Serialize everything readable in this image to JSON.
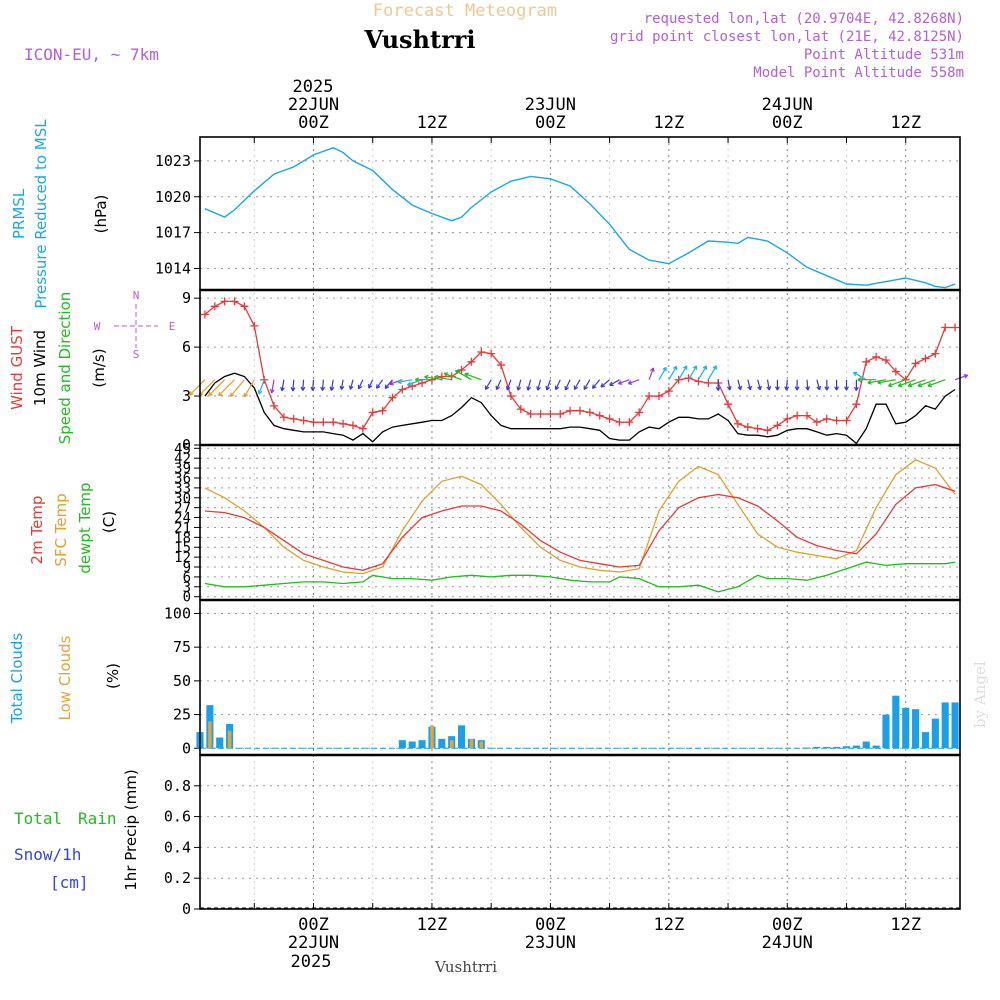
{
  "header": {
    "title": "Forecast Meteogram",
    "location": "Vushtrri",
    "model": "ICON-EU, ~ 7km",
    "requested": "requested lon,lat (20.9704E, 42.8268N)",
    "gridpoint": "grid point closest lon,lat (21E, 42.8125N)",
    "point_alt": "Point Altitude 531m",
    "model_alt": "Model Point Altitude 558m",
    "watermark": "by Angel",
    "footer_location": "Vushtrri"
  },
  "time_axis": {
    "top_year": "2025",
    "top_ticks": [
      {
        "t": 0,
        "time": "00Z",
        "date": "22JUN"
      },
      {
        "t": 12,
        "time": "12Z",
        "date": ""
      },
      {
        "t": 24,
        "time": "00Z",
        "date": "23JUN"
      },
      {
        "t": 36,
        "time": "12Z",
        "date": ""
      },
      {
        "t": 48,
        "time": "00Z",
        "date": "24JUN"
      },
      {
        "t": 60,
        "time": "12Z",
        "date": ""
      }
    ],
    "bottom_year": "2025",
    "bottom_ticks": [
      {
        "t": 0,
        "time": "00Z",
        "date": "22JUN"
      },
      {
        "t": 12,
        "time": "12Z",
        "date": ""
      },
      {
        "t": 24,
        "time": "00Z",
        "date": "23JUN"
      },
      {
        "t": 36,
        "time": "12Z",
        "date": ""
      },
      {
        "t": 48,
        "time": "00Z",
        "date": "24JUN"
      },
      {
        "t": 60,
        "time": "12Z",
        "date": ""
      }
    ],
    "range_hours": [
      -11.5,
      65.5
    ]
  },
  "colors": {
    "pressure": "#1aa7e6",
    "gust": "#e83a3a",
    "wind": "#000000",
    "temp2m": "#e83a3a",
    "sfctemp": "#e0a030",
    "dewpt": "#22bb22",
    "total_cloud": "#1a9fe8",
    "low_cloud": "#dfa63a",
    "rain": "#22bb22",
    "snow": "#3344dd",
    "purple": "#b060d8",
    "title": "#f0c890"
  },
  "panels": {
    "pressure": {
      "label1": "PRMSL",
      "label2": "Pressure Reduced to MSL",
      "unit": "(hPa)",
      "ticks": [
        "1014",
        "1017",
        "1020",
        "1023"
      ]
    },
    "wind": {
      "gust_label": "Wind GUST",
      "wind_label": "10m Wind",
      "dir_label": "Speed and Direction",
      "unit": "(m/s)",
      "ticks": [
        "0",
        "3",
        "6",
        "9"
      ],
      "compass_w": "W",
      "compass_e": "E",
      "compass_n": "N",
      "compass_s": "S"
    },
    "temp": {
      "label1": "2m Temp",
      "label2": "SFC Temp",
      "label3": "dewpt Temp",
      "unit": "(C)",
      "ticks": [
        "0",
        "3",
        "6",
        "9",
        "12",
        "15",
        "18",
        "21",
        "24",
        "27",
        "30",
        "33",
        "36",
        "39",
        "42",
        "45"
      ]
    },
    "clouds": {
      "label1": "Total Clouds",
      "label2": "Low Clouds",
      "unit": "(%)",
      "ticks": [
        "0",
        "25",
        "50",
        "75",
        "100"
      ]
    },
    "precip": {
      "rain_label1": "Total",
      "rain_label2": "Rain",
      "snow_label1": "Snow/1h",
      "snow_label2": "[cm]",
      "unit": "1hr Precip (mm)",
      "ticks": [
        "0",
        "0.2",
        "0.4",
        "0.6",
        "0.8"
      ]
    }
  },
  "chart_data": {
    "type": "line",
    "x_unit": "hours from 22JUN 00Z",
    "pressure": {
      "name": "PRMSL (hPa)",
      "ylim": [
        1012.2,
        1025
      ],
      "x": [
        -11,
        -9,
        -8,
        -6,
        -4,
        -2,
        0,
        2,
        3,
        4,
        6,
        8,
        10,
        12,
        14,
        15,
        16,
        18,
        20,
        22,
        24,
        26,
        28,
        30,
        32,
        34,
        36,
        38,
        40,
        42,
        43,
        44,
        46,
        48,
        50,
        52,
        54,
        56,
        58,
        60,
        62,
        63,
        64,
        65
      ],
      "y": [
        1019.0,
        1018.3,
        1018.9,
        1020.5,
        1021.9,
        1022.5,
        1023.5,
        1024.1,
        1023.7,
        1023.0,
        1022.2,
        1020.6,
        1019.3,
        1018.6,
        1018.0,
        1018.3,
        1019.1,
        1020.4,
        1021.3,
        1021.7,
        1021.5,
        1020.9,
        1019.4,
        1017.7,
        1015.6,
        1014.7,
        1014.4,
        1015.3,
        1016.3,
        1016.2,
        1016.1,
        1016.6,
        1016.3,
        1015.3,
        1014.1,
        1013.4,
        1012.7,
        1012.6,
        1012.9,
        1013.2,
        1012.8,
        1012.5,
        1012.4,
        1012.7
      ]
    },
    "wind_gust": {
      "name": "Wind GUST (m/s)",
      "ylim": [
        0,
        9.5
      ],
      "x": [
        -11,
        -10,
        -9,
        -8,
        -7,
        -6,
        -5,
        -4,
        -3,
        -2,
        -1,
        0,
        1,
        2,
        3,
        4,
        5,
        6,
        7,
        8,
        9,
        10,
        11,
        12,
        13,
        14,
        15,
        16,
        17,
        18,
        19,
        20,
        21,
        22,
        23,
        24,
        25,
        26,
        27,
        28,
        29,
        30,
        31,
        32,
        33,
        34,
        35,
        36,
        37,
        38,
        39,
        40,
        41,
        42,
        43,
        44,
        45,
        46,
        47,
        48,
        49,
        50,
        51,
        52,
        53,
        54,
        55,
        56,
        57,
        58,
        59,
        60,
        61,
        62,
        63,
        64,
        65
      ],
      "y": [
        8.0,
        8.5,
        8.8,
        8.8,
        8.5,
        7.3,
        4.0,
        2.4,
        1.7,
        1.6,
        1.5,
        1.4,
        1.4,
        1.4,
        1.3,
        1.2,
        1.0,
        2.0,
        2.1,
        2.9,
        3.4,
        3.6,
        3.8,
        4.0,
        4.2,
        4.2,
        4.6,
        5.1,
        5.7,
        5.6,
        4.9,
        3.0,
        2.2,
        1.9,
        1.9,
        1.9,
        1.9,
        2.1,
        2.1,
        2.0,
        1.8,
        1.6,
        1.4,
        1.4,
        2.0,
        3.0,
        3.0,
        3.3,
        4.0,
        4.1,
        3.9,
        3.8,
        3.8,
        2.5,
        1.3,
        1.1,
        1.0,
        0.9,
        1.2,
        1.6,
        1.8,
        1.8,
        1.4,
        1.6,
        1.5,
        1.5,
        2.5,
        5.1,
        5.4,
        5.2,
        4.5,
        4.0,
        5.0,
        5.3,
        5.6,
        7.2,
        7.2
      ]
    },
    "wind_10m": {
      "name": "10m Wind (m/s)",
      "ylim": [
        0,
        9.5
      ],
      "x": [
        -11,
        -10,
        -9,
        -8,
        -7,
        -6,
        -5,
        -4,
        -3,
        -2,
        -1,
        0,
        1,
        2,
        3,
        4,
        5,
        6,
        7,
        8,
        9,
        10,
        11,
        12,
        13,
        14,
        15,
        16,
        17,
        18,
        19,
        20,
        21,
        22,
        23,
        24,
        25,
        26,
        27,
        28,
        29,
        30,
        31,
        32,
        33,
        34,
        35,
        36,
        37,
        38,
        39,
        40,
        41,
        42,
        43,
        44,
        45,
        46,
        47,
        48,
        49,
        50,
        51,
        52,
        53,
        54,
        55,
        56,
        57,
        58,
        59,
        60,
        61,
        62,
        63,
        64,
        65
      ],
      "y": [
        3.0,
        3.8,
        4.2,
        4.4,
        4.2,
        3.5,
        2.0,
        1.2,
        1.0,
        0.9,
        0.8,
        0.8,
        0.8,
        0.7,
        0.6,
        0.3,
        0.7,
        0.2,
        0.8,
        1.1,
        1.2,
        1.3,
        1.4,
        1.5,
        1.5,
        1.8,
        2.3,
        2.9,
        2.6,
        1.8,
        1.2,
        1.0,
        1.0,
        1.0,
        1.0,
        1.0,
        1.0,
        1.1,
        1.1,
        1.0,
        0.9,
        0.4,
        0.3,
        0.3,
        0.8,
        1.1,
        1.0,
        1.4,
        1.7,
        1.7,
        1.6,
        1.6,
        1.9,
        1.5,
        0.7,
        0.6,
        0.6,
        0.5,
        0.6,
        0.9,
        1.0,
        1.0,
        0.8,
        0.6,
        0.7,
        0.6,
        0.1,
        1.0,
        2.5,
        2.5,
        1.3,
        1.4,
        1.8,
        2.4,
        2.2,
        3.0,
        3.4
      ]
    },
    "wind_arrows": {
      "name": "Speed and Direction",
      "note": "arrows drawn at ~4 m/s level; dir is arrow pointing angle in degrees (0=east, counterclockwise)",
      "x": [
        -11,
        -10,
        -9,
        -8,
        -7,
        -6,
        -5,
        -4,
        -3,
        -2,
        -1,
        0,
        1,
        2,
        3,
        4,
        5,
        6,
        7,
        8,
        9,
        10,
        11,
        12,
        13,
        14,
        15,
        16,
        17,
        18,
        19,
        20,
        21,
        22,
        23,
        24,
        25,
        26,
        27,
        28,
        29,
        30,
        31,
        32,
        33,
        34,
        35,
        36,
        37,
        38,
        39,
        40,
        41,
        42,
        43,
        44,
        45,
        46,
        47,
        48,
        49,
        50,
        51,
        52,
        53,
        54,
        55,
        56,
        57,
        58,
        59,
        60,
        61,
        62,
        63,
        64,
        65
      ],
      "dir": [
        225,
        225,
        225,
        225,
        230,
        240,
        250,
        260,
        260,
        265,
        265,
        265,
        265,
        260,
        260,
        255,
        245,
        245,
        235,
        230,
        200,
        190,
        200,
        180,
        170,
        170,
        160,
        150,
        160,
        240,
        245,
        250,
        255,
        255,
        255,
        250,
        245,
        245,
        240,
        240,
        230,
        220,
        210,
        200,
        200,
        70,
        60,
        60,
        60,
        60,
        60,
        60,
        270,
        280,
        285,
        285,
        285,
        280,
        270,
        265,
        270,
        275,
        285,
        270,
        270,
        270,
        270,
        150,
        180,
        190,
        190,
        200,
        200,
        200,
        200,
        200,
        20
      ],
      "speed": [
        4.0,
        4.0,
        4.2,
        4.2,
        4.0,
        3.5,
        2.4,
        2.0,
        1.5,
        1.5,
        1.4,
        1.4,
        1.4,
        1.4,
        1.2,
        1.2,
        1.2,
        1.0,
        1.3,
        1.5,
        2.0,
        2.3,
        2.5,
        2.8,
        3.0,
        3.0,
        3.2,
        3.2,
        3.0,
        1.5,
        1.4,
        1.4,
        1.4,
        1.4,
        1.4,
        1.4,
        1.4,
        1.5,
        1.5,
        1.5,
        1.5,
        1.5,
        1.5,
        1.6,
        1.6,
        1.8,
        2.2,
        2.5,
        2.6,
        2.6,
        2.6,
        2.6,
        1.4,
        1.3,
        1.3,
        1.3,
        1.3,
        1.3,
        1.3,
        1.3,
        1.3,
        1.3,
        1.3,
        1.3,
        1.3,
        1.3,
        1.4,
        2.3,
        3.2,
        3.2,
        3.2,
        3.2,
        3.2,
        3.2,
        3.2,
        3.2,
        2.0
      ]
    },
    "temp_2m": {
      "name": "2m Temp (C)",
      "ylim": [
        -1,
        46
      ],
      "x": [
        -11,
        -9,
        -7,
        -5,
        -3,
        -1,
        1,
        3,
        5,
        7,
        9,
        11,
        13,
        15,
        17,
        19,
        21,
        23,
        25,
        27,
        29,
        31,
        33,
        35,
        37,
        39,
        41,
        43,
        45,
        47,
        49,
        51,
        53,
        55,
        57,
        59,
        61,
        63,
        65
      ],
      "y": [
        26,
        25.5,
        24,
        21,
        17,
        13,
        11,
        9,
        8,
        10,
        18,
        24,
        26,
        27.5,
        27.5,
        26,
        22,
        17,
        13.5,
        11,
        10,
        9,
        9.5,
        20,
        27,
        30,
        31,
        30,
        27.5,
        23,
        18,
        15.5,
        14,
        13,
        19,
        28,
        33,
        34,
        32
      ]
    },
    "temp_sfc": {
      "name": "SFC Temp (C)",
      "ylim": [
        -1,
        46
      ],
      "x": [
        -11,
        -9,
        -7,
        -5,
        -3,
        -1,
        1,
        3,
        5,
        7,
        9,
        11,
        13,
        15,
        17,
        19,
        21,
        23,
        25,
        27,
        29,
        31,
        33,
        35,
        37,
        39,
        41,
        43,
        45,
        47,
        49,
        51,
        53,
        55,
        57,
        59,
        61,
        63,
        65
      ],
      "y": [
        33,
        30,
        26,
        21,
        15,
        11,
        9,
        7.5,
        7,
        9,
        20,
        29,
        35,
        36.5,
        34,
        28,
        21,
        15,
        11,
        9,
        8,
        7.5,
        8.5,
        26,
        35,
        39.5,
        37,
        28,
        19,
        15,
        13.5,
        12.5,
        11.5,
        14,
        27,
        37,
        41.5,
        39,
        31
      ]
    },
    "temp_dewpt": {
      "name": "dewpt Temp (C)",
      "ylim": [
        -1,
        46
      ],
      "x": [
        -11,
        -9,
        -7,
        -5,
        -3,
        -1,
        1,
        3,
        5,
        6,
        8,
        10,
        12,
        14,
        16,
        18,
        20,
        22,
        24,
        26,
        28,
        30,
        31,
        33,
        35,
        37,
        39,
        41,
        43,
        45,
        46,
        48,
        50,
        52,
        54,
        56,
        58,
        60,
        62,
        64,
        65
      ],
      "y": [
        4,
        3,
        3,
        3.5,
        4,
        4.5,
        4.5,
        4,
        4.5,
        6.5,
        5.5,
        5.5,
        5,
        6,
        6.5,
        6,
        6.5,
        6.5,
        6,
        5,
        4.5,
        4.5,
        6,
        5.5,
        3,
        3,
        3.5,
        1.5,
        3,
        6.5,
        5.5,
        5.5,
        5,
        6.5,
        8.5,
        10.5,
        9.5,
        10,
        10,
        10,
        10.5
      ]
    },
    "clouds_total": {
      "name": "Total Clouds (%)",
      "ylim": [
        -5,
        110
      ],
      "x": [
        -11.5,
        -10.5,
        -9.5,
        -8.5,
        9,
        10,
        11,
        12,
        13,
        14,
        15,
        16,
        17,
        50,
        51,
        52,
        53,
        54,
        55,
        56,
        57,
        58,
        59,
        60,
        61,
        62,
        63,
        64,
        65
      ],
      "y": [
        12,
        32,
        8,
        18,
        6,
        5,
        6,
        16,
        7,
        9,
        17,
        7,
        6,
        0.5,
        1,
        1,
        1,
        1.5,
        2,
        5,
        2,
        25,
        39,
        30,
        29,
        12,
        22,
        34,
        34
      ]
    },
    "clouds_low": {
      "name": "Low Clouds (%)",
      "ylim": [
        -5,
        110
      ],
      "x": [
        -10.5,
        -8.5,
        12,
        14,
        16,
        17
      ],
      "y": [
        20,
        13,
        17,
        6,
        7,
        5
      ]
    },
    "precip": {
      "name": "1hr Precip (mm)",
      "ylim": [
        0,
        1
      ],
      "rain": [],
      "snow": []
    }
  }
}
